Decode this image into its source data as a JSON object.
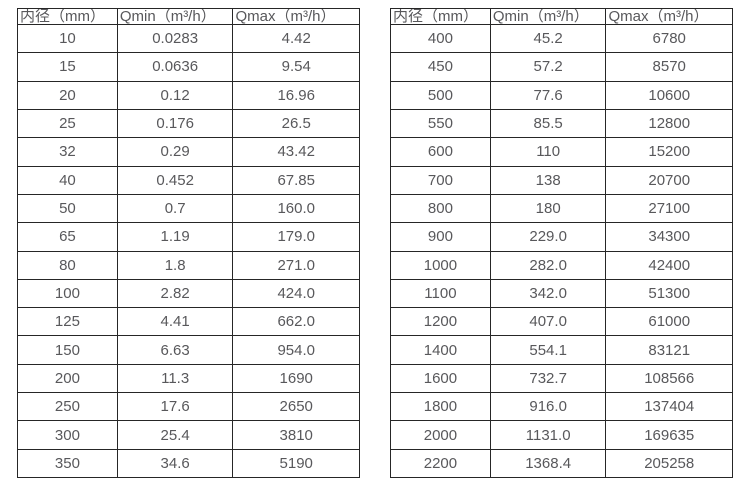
{
  "colors": {
    "background": "#ffffff",
    "grid_border": "#262626",
    "text": "#58585b"
  },
  "tables": [
    {
      "name": "flow-table-left",
      "headers": [
        "内径（mm）",
        "Qmin（m³/h）",
        "Qmax（m³/h）"
      ],
      "rows": [
        [
          "10",
          "0.0283",
          "4.42"
        ],
        [
          "15",
          "0.0636",
          "9.54"
        ],
        [
          "20",
          "0.12",
          "16.96"
        ],
        [
          "25",
          "0.176",
          "26.5"
        ],
        [
          "32",
          "0.29",
          "43.42"
        ],
        [
          "40",
          "0.452",
          "67.85"
        ],
        [
          "50",
          "0.7",
          "160.0"
        ],
        [
          "65",
          "1.19",
          "179.0"
        ],
        [
          "80",
          "1.8",
          "271.0"
        ],
        [
          "100",
          "2.82",
          "424.0"
        ],
        [
          "125",
          "4.41",
          "662.0"
        ],
        [
          "150",
          "6.63",
          "954.0"
        ],
        [
          "200",
          "11.3",
          "1690"
        ],
        [
          "250",
          "17.6",
          "2650"
        ],
        [
          "300",
          "25.4",
          "3810"
        ],
        [
          "350",
          "34.6",
          "5190"
        ]
      ]
    },
    {
      "name": "flow-table-right",
      "headers": [
        "内径（mm）",
        "Qmin（m³/h）",
        "Qmax（m³/h）"
      ],
      "rows": [
        [
          "400",
          "45.2",
          "6780"
        ],
        [
          "450",
          "57.2",
          "8570"
        ],
        [
          "500",
          "77.6",
          "10600"
        ],
        [
          "550",
          "85.5",
          "12800"
        ],
        [
          "600",
          "110",
          "15200"
        ],
        [
          "700",
          "138",
          "20700"
        ],
        [
          "800",
          "180",
          "27100"
        ],
        [
          "900",
          "229.0",
          "34300"
        ],
        [
          "1000",
          "282.0",
          "42400"
        ],
        [
          "1100",
          "342.0",
          "51300"
        ],
        [
          "1200",
          "407.0",
          "61000"
        ],
        [
          "1400",
          "554.1",
          "83121"
        ],
        [
          "1600",
          "732.7",
          "108566"
        ],
        [
          "1800",
          "916.0",
          "137404"
        ],
        [
          "2000",
          "1131.0",
          "169635"
        ],
        [
          "2200",
          "1368.4",
          "205258"
        ]
      ]
    }
  ]
}
